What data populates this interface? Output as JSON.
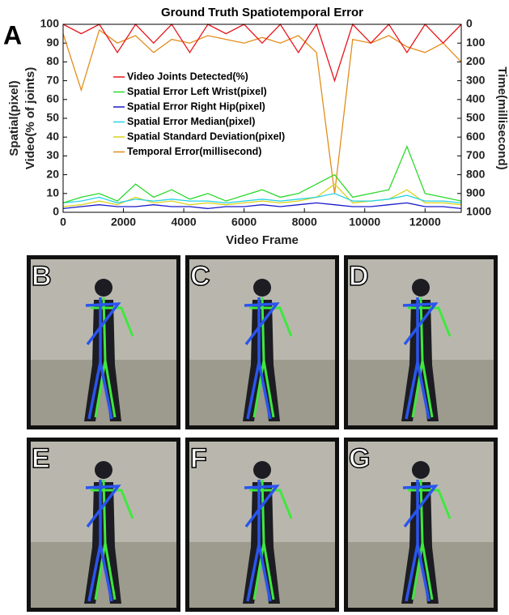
{
  "panel_label": "A",
  "panels": [
    {
      "label": "B"
    },
    {
      "label": "C"
    },
    {
      "label": "D"
    },
    {
      "label": "E"
    },
    {
      "label": "F"
    },
    {
      "label": "G"
    }
  ],
  "chart_data": {
    "type": "line",
    "title": "Ground Truth Spatiotemporal Error",
    "x_label": "Video Frame",
    "y_label": [
      "Spatial(pixel)",
      "Video(% of joints)"
    ],
    "y2_label": "Time(millisecond)",
    "x": [
      0,
      600,
      1200,
      1800,
      2400,
      3000,
      3600,
      4200,
      4800,
      5400,
      6000,
      6600,
      7200,
      7800,
      8400,
      9000,
      9600,
      10200,
      10800,
      11400,
      12000,
      12600,
      13200
    ],
    "xlim": [
      0,
      13200
    ],
    "xticks": [
      0,
      2000,
      4000,
      6000,
      8000,
      10000,
      12000
    ],
    "ylim": [
      0,
      100
    ],
    "yticks": [
      0,
      10,
      20,
      30,
      40,
      50,
      60,
      70,
      80,
      90,
      100
    ],
    "y2lim": [
      1000,
      0
    ],
    "y2ticks": [
      0,
      100,
      200,
      300,
      400,
      500,
      600,
      700,
      800,
      900,
      1000
    ],
    "series": [
      {
        "name": "Video Joints Detected(%)",
        "color": "#e8151b",
        "values": [
          100,
          95,
          100,
          85,
          100,
          90,
          100,
          85,
          100,
          95,
          100,
          90,
          100,
          85,
          100,
          70,
          100,
          90,
          100,
          85,
          100,
          90,
          100
        ]
      },
      {
        "name": "Spatial Error Left Wrist(pixel)",
        "color": "#2bd92b",
        "values": [
          5,
          8,
          10,
          6,
          15,
          8,
          12,
          7,
          10,
          6,
          9,
          12,
          8,
          10,
          15,
          20,
          8,
          10,
          12,
          35,
          10,
          8,
          6
        ]
      },
      {
        "name": "Spatial Error Right Hip(pixel)",
        "color": "#1a1acc",
        "values": [
          2,
          3,
          4,
          3,
          3,
          4,
          3,
          3,
          2,
          3,
          3,
          4,
          3,
          4,
          5,
          4,
          3,
          3,
          4,
          5,
          3,
          3,
          2
        ]
      },
      {
        "name": "Spatial Error Median(pixel)",
        "color": "#22d3e6",
        "values": [
          5,
          6,
          8,
          5,
          7,
          6,
          7,
          6,
          6,
          5,
          6,
          7,
          6,
          7,
          8,
          10,
          6,
          6,
          7,
          9,
          6,
          6,
          5
        ]
      },
      {
        "name": "Spatial Standard Deviation(pixel)",
        "color": "#d9d21a",
        "values": [
          3,
          4,
          6,
          4,
          8,
          5,
          6,
          4,
          5,
          4,
          5,
          6,
          5,
          6,
          8,
          15,
          5,
          6,
          7,
          12,
          5,
          5,
          4
        ]
      },
      {
        "name": "Temporal Error(millisecond)",
        "color": "#e38c1a",
        "axis": "y2",
        "values": [
          50,
          350,
          30,
          100,
          60,
          150,
          80,
          100,
          60,
          80,
          100,
          70,
          100,
          60,
          150,
          900,
          80,
          100,
          60,
          120,
          150,
          100,
          200
        ]
      }
    ],
    "legend": "left"
  }
}
